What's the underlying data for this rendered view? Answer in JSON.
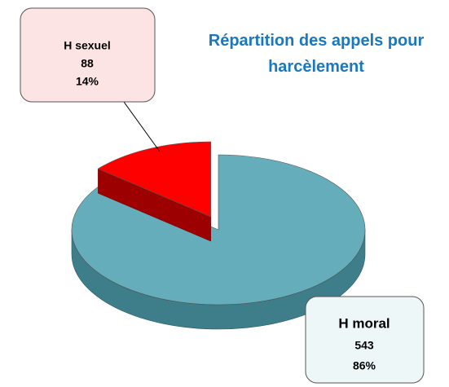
{
  "chart_data": {
    "type": "pie",
    "title": "Répartition des appels pour harcèlement",
    "categories": [
      "H sexuel",
      "H moral"
    ],
    "values": [
      88,
      543
    ],
    "percent_labels": [
      "14%",
      "86%"
    ],
    "colors": [
      "#ff0000",
      "#66adbb"
    ],
    "side_colors": [
      "#9c0000",
      "#3e7e8b"
    ]
  }
}
